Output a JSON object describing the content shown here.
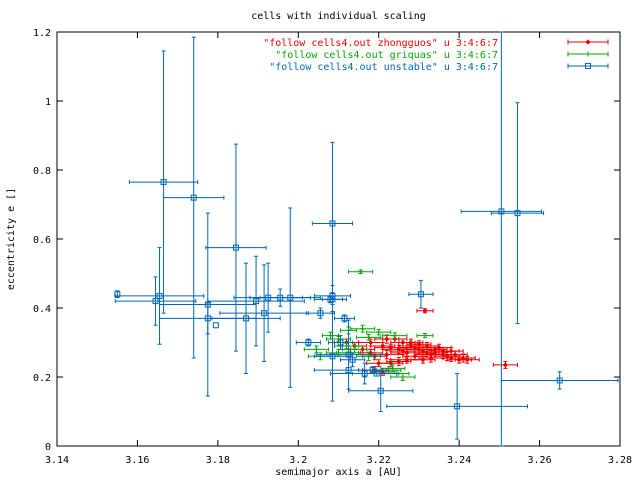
{
  "chart_data": {
    "type": "scatter",
    "title": "cells with individual scaling",
    "xlabel": "semimajor axis a [AU]",
    "ylabel": "eccentricity e []",
    "xlim": [
      3.14,
      3.28
    ],
    "ylim": [
      0,
      1.2
    ],
    "xticks": [
      "3.14",
      "3.16",
      "3.18",
      "3.2",
      "3.22",
      "3.24",
      "3.26",
      "3.28"
    ],
    "yticks": [
      "0",
      "0.2",
      "0.4",
      "0.6",
      "0.8",
      "1",
      "1.2"
    ],
    "grid": false,
    "legend_position": "top-right",
    "series": [
      {
        "name": "\"follow cells4.out zhongguos\" u 3:4:6:7",
        "color": "#ee0000",
        "marker": "diamond",
        "points": [
          [
            3.2515,
            0.235,
            0.003,
            0.01
          ],
          [
            3.2315,
            0.392,
            0.002,
            0.006
          ],
          [
            3.218,
            0.3,
            0.003,
            0.01
          ],
          [
            3.221,
            0.29,
            0.003,
            0.01
          ],
          [
            3.223,
            0.285,
            0.004,
            0.01
          ],
          [
            3.225,
            0.28,
            0.004,
            0.012
          ],
          [
            3.226,
            0.275,
            0.003,
            0.01
          ],
          [
            3.227,
            0.27,
            0.004,
            0.012
          ],
          [
            3.228,
            0.29,
            0.003,
            0.01
          ],
          [
            3.229,
            0.285,
            0.004,
            0.01
          ],
          [
            3.23,
            0.28,
            0.003,
            0.012
          ],
          [
            3.231,
            0.275,
            0.004,
            0.01
          ],
          [
            3.232,
            0.27,
            0.003,
            0.01
          ],
          [
            3.233,
            0.265,
            0.004,
            0.012
          ],
          [
            3.234,
            0.28,
            0.003,
            0.01
          ],
          [
            3.235,
            0.285,
            0.003,
            0.01
          ],
          [
            3.236,
            0.275,
            0.004,
            0.01
          ],
          [
            3.237,
            0.26,
            0.003,
            0.012
          ],
          [
            3.238,
            0.255,
            0.004,
            0.01
          ],
          [
            3.239,
            0.265,
            0.003,
            0.01
          ],
          [
            3.24,
            0.25,
            0.003,
            0.01
          ],
          [
            3.241,
            0.255,
            0.003,
            0.012
          ],
          [
            3.224,
            0.31,
            0.003,
            0.01
          ],
          [
            3.226,
            0.3,
            0.003,
            0.01
          ],
          [
            3.222,
            0.265,
            0.004,
            0.012
          ],
          [
            3.219,
            0.26,
            0.003,
            0.01
          ],
          [
            3.22,
            0.24,
            0.003,
            0.01
          ],
          [
            3.223,
            0.24,
            0.003,
            0.01
          ],
          [
            3.225,
            0.245,
            0.003,
            0.012
          ],
          [
            3.227,
            0.25,
            0.004,
            0.01
          ],
          [
            3.229,
            0.26,
            0.003,
            0.01
          ],
          [
            3.231,
            0.25,
            0.003,
            0.01
          ],
          [
            3.233,
            0.255,
            0.003,
            0.012
          ],
          [
            3.216,
            0.28,
            0.003,
            0.01
          ],
          [
            3.214,
            0.29,
            0.003,
            0.01
          ],
          [
            3.218,
            0.27,
            0.003,
            0.01
          ],
          [
            3.222,
            0.31,
            0.003,
            0.012
          ],
          [
            3.228,
            0.3,
            0.003,
            0.01
          ],
          [
            3.23,
            0.295,
            0.003,
            0.01
          ],
          [
            3.232,
            0.29,
            0.003,
            0.01
          ],
          [
            3.234,
            0.27,
            0.003,
            0.01
          ],
          [
            3.236,
            0.265,
            0.003,
            0.012
          ],
          [
            3.238,
            0.275,
            0.003,
            0.01
          ],
          [
            3.242,
            0.25,
            0.003,
            0.01
          ],
          [
            3.219,
            0.22,
            0.003,
            0.01
          ],
          [
            3.221,
            0.215,
            0.003,
            0.01
          ],
          [
            3.212,
            0.3,
            0.003,
            0.01
          ]
        ]
      },
      {
        "name": "\"follow cells4.out griquas\"   u 3:4:6:7",
        "color": "#00aa00",
        "marker": "plus",
        "points": [
          [
            3.2155,
            0.505,
            0.003,
            0.005
          ],
          [
            3.2175,
            0.315,
            0.003,
            0.008
          ],
          [
            3.2125,
            0.335,
            0.002,
            0.01
          ],
          [
            3.21,
            0.31,
            0.003,
            0.008
          ],
          [
            3.208,
            0.32,
            0.002,
            0.01
          ],
          [
            3.212,
            0.29,
            0.003,
            0.008
          ],
          [
            3.216,
            0.34,
            0.003,
            0.01
          ],
          [
            3.22,
            0.33,
            0.003,
            0.008
          ],
          [
            3.224,
            0.32,
            0.003,
            0.008
          ],
          [
            3.2315,
            0.32,
            0.002,
            0.006
          ],
          [
            3.21,
            0.27,
            0.003,
            0.01
          ],
          [
            3.2125,
            0.27,
            0.003,
            0.01
          ],
          [
            3.2045,
            0.28,
            0.003,
            0.01
          ],
          [
            3.214,
            0.28,
            0.003,
            0.01
          ],
          [
            3.2225,
            0.22,
            0.003,
            0.01
          ],
          [
            3.2245,
            0.21,
            0.003,
            0.01
          ],
          [
            3.226,
            0.2,
            0.003,
            0.01
          ],
          [
            3.2165,
            0.21,
            0.003,
            0.01
          ],
          [
            3.2175,
            0.26,
            0.003,
            0.012
          ],
          [
            3.2055,
            0.26,
            0.003,
            0.01
          ],
          [
            3.2235,
            0.225,
            0.003,
            0.01
          ]
        ]
      },
      {
        "name": "\"follow cells4.out unstable\"  u 3:4:6:7",
        "color": "#0066bb",
        "marker": "square",
        "points": [
          [
            3.155,
            0.44,
            0.0,
            0.01
          ],
          [
            3.1645,
            0.42,
            0.01,
            0.07
          ],
          [
            3.1655,
            0.435,
            0.011,
            0.14
          ],
          [
            3.1665,
            0.765,
            0.0085,
            0.38
          ],
          [
            3.174,
            0.72,
            0.0075,
            0.465
          ],
          [
            3.1775,
            0.37,
            0.012,
            0.045
          ],
          [
            3.1775,
            0.41,
            0.012,
            0.265
          ],
          [
            3.1795,
            0.35,
            0.0,
            0.0
          ],
          [
            3.1845,
            0.575,
            0.0075,
            0.3
          ],
          [
            3.187,
            0.37,
            0.0085,
            0.16
          ],
          [
            3.1895,
            0.42,
            0.012,
            0.13
          ],
          [
            3.1915,
            0.385,
            0.011,
            0.14
          ],
          [
            3.1925,
            0.43,
            0.0085,
            0.1
          ],
          [
            3.1955,
            0.43,
            0.0075,
            0.025
          ],
          [
            3.198,
            0.43,
            0.0075,
            0.26
          ],
          [
            3.2025,
            0.3,
            0.003,
            0.01
          ],
          [
            3.2055,
            0.385,
            0.0035,
            0.015
          ],
          [
            3.208,
            0.425,
            0.004,
            0.01
          ],
          [
            3.2085,
            0.425,
            0.0025,
            0.04
          ],
          [
            3.2085,
            0.435,
            0.0045,
            0.01
          ],
          [
            3.2085,
            0.645,
            0.005,
            0.235
          ],
          [
            3.2085,
            0.26,
            0.0045,
            0.13
          ],
          [
            3.2115,
            0.37,
            0.0025,
            0.01
          ],
          [
            3.2125,
            0.265,
            0.008,
            0.1
          ],
          [
            3.2125,
            0.22,
            0.0085,
            0.0
          ],
          [
            3.2165,
            0.21,
            0.0085,
            0.03
          ],
          [
            3.2195,
            0.21,
            0.0,
            0.0
          ],
          [
            3.2205,
            0.16,
            0.008,
            0.06
          ],
          [
            3.2305,
            0.44,
            0.003,
            0.04
          ],
          [
            3.2395,
            0.115,
            0.0175,
            0.095
          ],
          [
            3.2505,
            0.68,
            0.01,
            0.82
          ],
          [
            3.2545,
            0.675,
            0.0065,
            0.32
          ],
          [
            3.265,
            0.19,
            0.0145,
            0.025
          ],
          [
            3.2185,
            0.22,
            0.0035,
            0.01
          ],
          [
            3.2135,
            0.25,
            0.003,
            0.02
          ],
          [
            3.2105,
            0.3,
            0.003,
            0.02
          ]
        ]
      }
    ]
  }
}
